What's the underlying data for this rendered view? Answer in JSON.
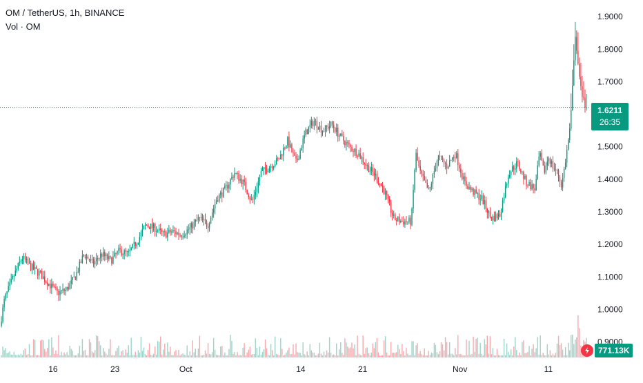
{
  "legend": {
    "title": "OM / TetherUS, 1h, BINANCE",
    "volume_label": "Vol · OM"
  },
  "price_badge": {
    "price": "1.6211",
    "countdown": "26:35",
    "color": "#089981"
  },
  "volume_badge": {
    "value": "771.13K",
    "icon": "flash-icon",
    "icon_color": "#f23645",
    "color": "#089981"
  },
  "colors": {
    "up": "#089981",
    "down": "#f23645",
    "up_volume": "#9fd3c9",
    "down_volume": "#f7a9ae",
    "axis_text": "#131722"
  },
  "chart_data": {
    "type": "candlestick",
    "title": "OM / TetherUS, 1h, BINANCE",
    "y_axis": {
      "ticks": [
        "0.9000",
        "1.0000",
        "1.1000",
        "1.2000",
        "1.3000",
        "1.4000",
        "1.5000",
        "1.6000",
        "1.7000",
        "1.8000",
        "1.9000"
      ],
      "range": [
        0.88,
        1.93
      ]
    },
    "x_axis": {
      "ticks": [
        "16",
        "23",
        "Oct",
        "14",
        "21",
        "Nov",
        "11"
      ],
      "tick_days": [
        6,
        13,
        21,
        34,
        41,
        52,
        62
      ],
      "range_days": [
        0,
        66.3
      ]
    },
    "last_price": 1.6211,
    "last_volume": "771.13K",
    "close_path": [
      [
        0.0,
        0.95
      ],
      [
        0.5,
        1.03
      ],
      [
        1.5,
        1.1
      ],
      [
        2.5,
        1.16
      ],
      [
        3.5,
        1.13
      ],
      [
        4.5,
        1.11
      ],
      [
        5.5,
        1.08
      ],
      [
        6.5,
        1.05
      ],
      [
        7.5,
        1.06
      ],
      [
        8.5,
        1.1
      ],
      [
        9.5,
        1.17
      ],
      [
        10.5,
        1.14
      ],
      [
        11.5,
        1.17
      ],
      [
        12.5,
        1.15
      ],
      [
        13.5,
        1.18
      ],
      [
        14.5,
        1.17
      ],
      [
        15.5,
        1.21
      ],
      [
        16.5,
        1.26
      ],
      [
        17.5,
        1.25
      ],
      [
        18.5,
        1.23
      ],
      [
        19.5,
        1.24
      ],
      [
        20.5,
        1.23
      ],
      [
        21.5,
        1.25
      ],
      [
        22.5,
        1.28
      ],
      [
        23.5,
        1.26
      ],
      [
        24.5,
        1.34
      ],
      [
        25.5,
        1.37
      ],
      [
        26.5,
        1.42
      ],
      [
        27.5,
        1.39
      ],
      [
        28.5,
        1.33
      ],
      [
        29.5,
        1.42
      ],
      [
        30.5,
        1.44
      ],
      [
        31.5,
        1.46
      ],
      [
        32.5,
        1.52
      ],
      [
        33.5,
        1.45
      ],
      [
        34.5,
        1.54
      ],
      [
        35.5,
        1.58
      ],
      [
        36.5,
        1.55
      ],
      [
        37.5,
        1.57
      ],
      [
        38.5,
        1.53
      ],
      [
        39.5,
        1.5
      ],
      [
        40.5,
        1.48
      ],
      [
        41.5,
        1.44
      ],
      [
        42.5,
        1.41
      ],
      [
        43.5,
        1.36
      ],
      [
        44.5,
        1.28
      ],
      [
        45.5,
        1.27
      ],
      [
        46.5,
        1.27
      ],
      [
        47.0,
        1.48
      ],
      [
        47.5,
        1.42
      ],
      [
        48.5,
        1.36
      ],
      [
        49.5,
        1.47
      ],
      [
        50.5,
        1.44
      ],
      [
        51.5,
        1.48
      ],
      [
        52.5,
        1.39
      ],
      [
        53.5,
        1.36
      ],
      [
        54.5,
        1.34
      ],
      [
        55.5,
        1.28
      ],
      [
        56.5,
        1.29
      ],
      [
        57.5,
        1.42
      ],
      [
        58.5,
        1.45
      ],
      [
        59.5,
        1.39
      ],
      [
        60.5,
        1.37
      ],
      [
        61.0,
        1.48
      ],
      [
        61.5,
        1.42
      ],
      [
        62.0,
        1.47
      ],
      [
        62.5,
        1.44
      ],
      [
        63.0,
        1.42
      ],
      [
        63.5,
        1.38
      ],
      [
        64.0,
        1.47
      ],
      [
        64.5,
        1.57
      ],
      [
        65.0,
        1.84
      ],
      [
        65.4,
        1.73
      ],
      [
        65.8,
        1.65
      ],
      [
        66.3,
        1.6211
      ]
    ]
  }
}
